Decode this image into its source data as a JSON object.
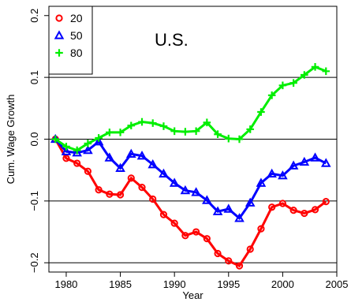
{
  "chart_data": {
    "type": "line",
    "title": "",
    "annotation": "U.S.",
    "xlabel": "Year",
    "ylabel": "Cum. Wage Growth",
    "xlim": [
      1978.4,
      2005
    ],
    "ylim": [
      -0.215,
      0.215
    ],
    "xticks": [
      1980,
      1985,
      1990,
      1995,
      2000,
      2005
    ],
    "yticks": [
      -0.2,
      -0.1,
      0.0,
      0.1,
      0.2
    ],
    "xtick_labels": [
      "1980",
      "1985",
      "1990",
      "1995",
      "2000",
      "2005"
    ],
    "ytick_labels": [
      "−0.2",
      "−0.1",
      "0.0",
      "0.1",
      "0.2"
    ],
    "gridlines_y": [
      -0.2,
      -0.1,
      0.0,
      0.1
    ],
    "legend_position": "top-left",
    "x": [
      1979,
      1980,
      1981,
      1982,
      1983,
      1984,
      1985,
      1986,
      1987,
      1988,
      1989,
      1990,
      1991,
      1992,
      1993,
      1994,
      1995,
      1996,
      1997,
      1998,
      1999,
      2000,
      2001,
      2002,
      2003,
      2004
    ],
    "series": [
      {
        "name": "20",
        "color": "#ff0000",
        "marker": "circle",
        "values": [
          0.0,
          -0.031,
          -0.039,
          -0.052,
          -0.082,
          -0.089,
          -0.09,
          -0.063,
          -0.078,
          -0.097,
          -0.122,
          -0.136,
          -0.156,
          -0.15,
          -0.161,
          -0.185,
          -0.197,
          -0.205,
          -0.178,
          -0.145,
          -0.11,
          -0.104,
          -0.115,
          -0.12,
          -0.114,
          -0.101
        ]
      },
      {
        "name": "50",
        "color": "#0000ff",
        "marker": "triangle",
        "values": [
          0.0,
          -0.02,
          -0.022,
          -0.018,
          -0.004,
          -0.03,
          -0.047,
          -0.024,
          -0.027,
          -0.041,
          -0.056,
          -0.071,
          -0.083,
          -0.086,
          -0.099,
          -0.117,
          -0.113,
          -0.128,
          -0.103,
          -0.071,
          -0.056,
          -0.059,
          -0.043,
          -0.037,
          -0.03,
          -0.039
        ]
      },
      {
        "name": "80",
        "color": "#00ee00",
        "marker": "plus",
        "values": [
          0.0,
          -0.012,
          -0.018,
          -0.007,
          0.002,
          0.011,
          0.011,
          0.022,
          0.028,
          0.026,
          0.021,
          0.013,
          0.012,
          0.013,
          0.027,
          0.008,
          0.001,
          0.0,
          0.016,
          0.044,
          0.071,
          0.087,
          0.091,
          0.104,
          0.117,
          0.11
        ]
      }
    ]
  }
}
